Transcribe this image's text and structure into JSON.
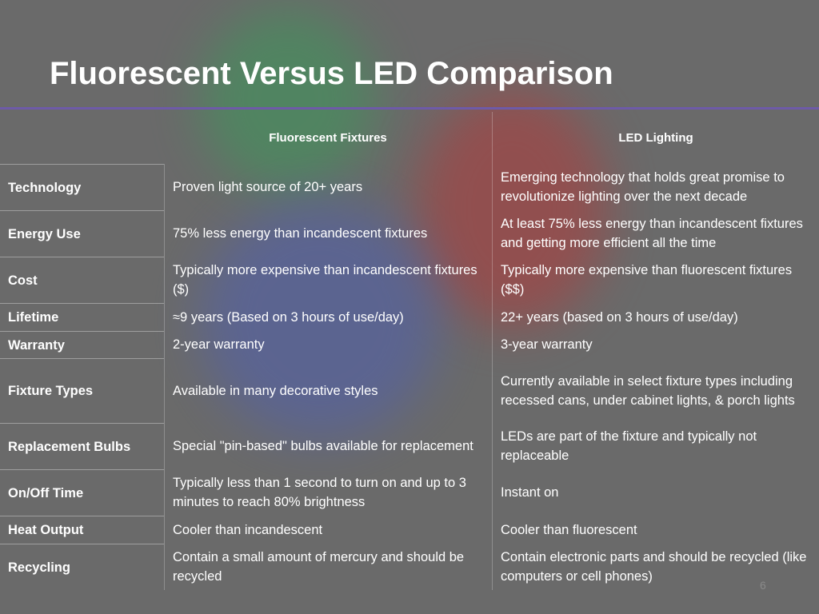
{
  "title": "Fluorescent Versus LED Comparison",
  "table": {
    "header": [
      "Fluorescent Fixtures",
      "LED Lighting"
    ],
    "rows": [
      [
        "Technology",
        "Proven light source of 20+ years",
        "Emerging technology that holds great promise to revolutionize lighting over the next decade"
      ],
      [
        "Energy Use",
        "75% less energy than incandescent fixtures",
        "At least 75% less energy than incandescent fixtures and getting more efficient all the time"
      ],
      [
        "Cost",
        "Typically more expensive than incandescent fixtures ($)",
        "Typically more expensive than fluorescent fixtures ($$)"
      ],
      [
        "Lifetime",
        "≈9 years (Based on 3 hours of use/day)",
        "22+ years (based on 3 hours of use/day)"
      ],
      [
        "Warranty",
        "2-year warranty",
        "3-year warranty"
      ],
      [
        "Fixture Types",
        "Available in many decorative styles",
        "Currently available in select fixture types including recessed cans, under cabinet lights, & porch lights"
      ],
      [
        "Replacement Bulbs",
        "Special \"pin-based\" bulbs available for replacement",
        "LEDs are part of the fixture and typically not replaceable"
      ],
      [
        "On/Off Time",
        "Typically less than 1 second to turn on and up to 3 minutes to reach 80% brightness",
        "Instant on"
      ],
      [
        "Heat Output",
        "Cooler than incandescent",
        "Cooler than fluorescent"
      ],
      [
        "Recycling",
        "Contain a small amount of mercury and should be recycled",
        "Contain electronic parts and should be recycled (like computers or cell phones)"
      ]
    ]
  },
  "page_number": "6"
}
